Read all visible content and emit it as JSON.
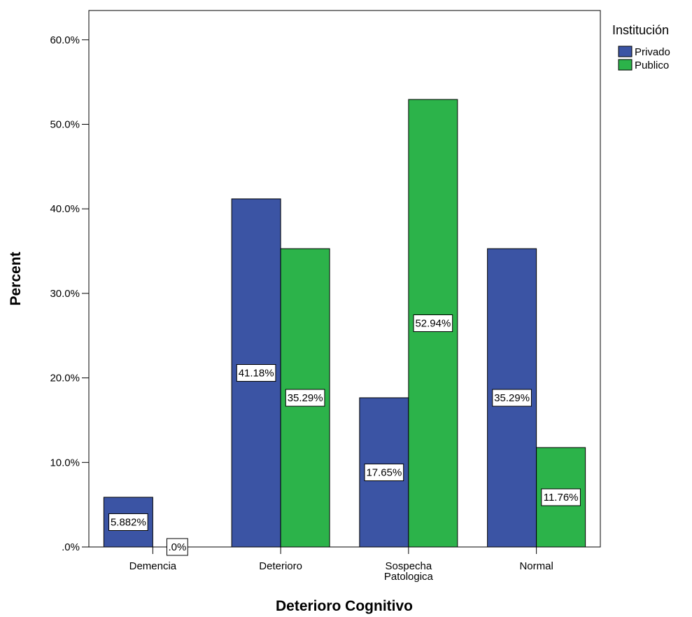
{
  "chart_data": {
    "type": "bar",
    "categories": [
      "Demencia",
      "Deterioro",
      "Sospecha Patologica",
      "Normal"
    ],
    "category_lines": [
      [
        "Demencia"
      ],
      [
        "Deterioro"
      ],
      [
        "Sospecha",
        "Patologica"
      ],
      [
        "Normal"
      ]
    ],
    "series": [
      {
        "name": "Privado",
        "values": [
          5.882,
          41.18,
          17.65,
          35.29
        ],
        "labels": [
          "5.882%",
          "41.18%",
          "17.65%",
          "35.29%"
        ],
        "color": "#3b54a4"
      },
      {
        "name": "Publico",
        "values": [
          0.0,
          35.29,
          52.94,
          11.76
        ],
        "labels": [
          ".0%",
          "35.29%",
          "52.94%",
          "11.76%"
        ],
        "color": "#2cb34a"
      }
    ],
    "xlabel": "Deterioro Cognitivo",
    "ylabel": "Percent",
    "ylim": [
      0,
      60
    ],
    "yticks": [
      0,
      10,
      20,
      30,
      40,
      50,
      60
    ],
    "ytick_labels": [
      ".0%",
      "10.0%",
      "20.0%",
      "30.0%",
      "40.0%",
      "50.0%",
      "60.0%"
    ],
    "legend_title": "Institución",
    "legend_position": "top-right",
    "grid": false
  }
}
